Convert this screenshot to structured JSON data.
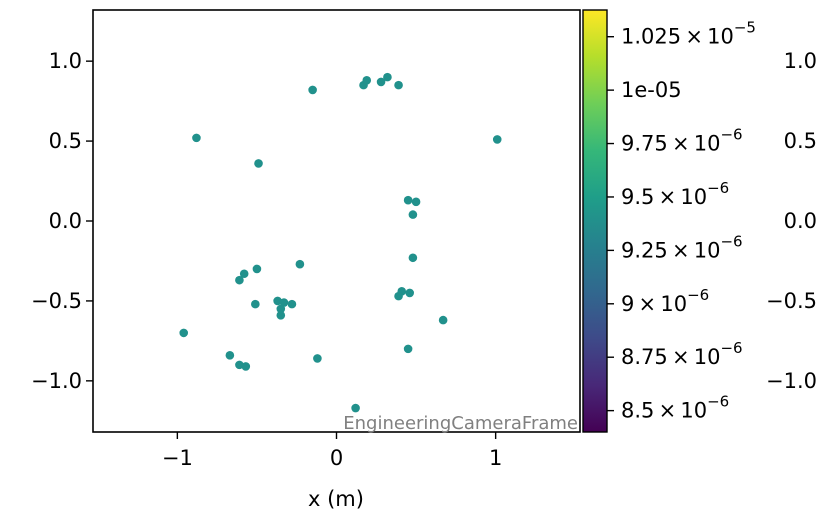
{
  "chart_data": {
    "type": "scatter",
    "xlabel": "x  (m)",
    "watermark": "EngineeringCameraFrame",
    "xlim": [
      -1.53,
      1.53
    ],
    "ylim": [
      -1.32,
      1.32
    ],
    "xticks": [
      {
        "v": -1,
        "label": "−1"
      },
      {
        "v": 0,
        "label": "0"
      },
      {
        "v": 1,
        "label": "1"
      }
    ],
    "yticks": [
      {
        "v": 1.0,
        "label": "1.0"
      },
      {
        "v": 0.5,
        "label": "0.5"
      },
      {
        "v": 0.0,
        "label": "0.0"
      },
      {
        "v": -0.5,
        "label": "−0.5"
      },
      {
        "v": -1.0,
        "label": "−1.0"
      }
    ],
    "right_yticks": [
      {
        "v": 1.0,
        "label": "1.0"
      },
      {
        "v": 0.5,
        "label": "0.5"
      },
      {
        "v": 0.0,
        "label": "0.0"
      },
      {
        "v": -0.5,
        "label": "−0.5"
      },
      {
        "v": -1.0,
        "label": "−1.0"
      }
    ],
    "point_color": "#21918c",
    "points": [
      {
        "x": -0.88,
        "y": 0.52
      },
      {
        "x": -0.49,
        "y": 0.36
      },
      {
        "x": -0.15,
        "y": 0.82
      },
      {
        "x": 0.17,
        "y": 0.85
      },
      {
        "x": 0.19,
        "y": 0.88
      },
      {
        "x": 0.28,
        "y": 0.87
      },
      {
        "x": 0.32,
        "y": 0.9
      },
      {
        "x": 0.39,
        "y": 0.85
      },
      {
        "x": 1.01,
        "y": 0.51
      },
      {
        "x": 0.45,
        "y": 0.13
      },
      {
        "x": 0.5,
        "y": 0.12
      },
      {
        "x": 0.48,
        "y": 0.04
      },
      {
        "x": 0.48,
        "y": -0.23
      },
      {
        "x": -0.23,
        "y": -0.27
      },
      {
        "x": -0.5,
        "y": -0.3
      },
      {
        "x": -0.58,
        "y": -0.33
      },
      {
        "x": -0.61,
        "y": -0.37
      },
      {
        "x": 0.41,
        "y": -0.44
      },
      {
        "x": 0.46,
        "y": -0.45
      },
      {
        "x": 0.39,
        "y": -0.47
      },
      {
        "x": -0.37,
        "y": -0.5
      },
      {
        "x": -0.33,
        "y": -0.51
      },
      {
        "x": -0.28,
        "y": -0.52
      },
      {
        "x": -0.51,
        "y": -0.52
      },
      {
        "x": -0.35,
        "y": -0.55
      },
      {
        "x": -0.35,
        "y": -0.59
      },
      {
        "x": 0.67,
        "y": -0.62
      },
      {
        "x": -0.96,
        "y": -0.7
      },
      {
        "x": 0.45,
        "y": -0.8
      },
      {
        "x": -0.67,
        "y": -0.84
      },
      {
        "x": -0.12,
        "y": -0.86
      },
      {
        "x": -0.61,
        "y": -0.9
      },
      {
        "x": -0.57,
        "y": -0.91
      },
      {
        "x": 0.12,
        "y": -1.17
      }
    ],
    "colorbar": {
      "colormap": "viridis",
      "stops": [
        "#440154",
        "#482878",
        "#3e4a89",
        "#31688e",
        "#26828e",
        "#1f9e89",
        "#35b779",
        "#6ece58",
        "#b5de2b",
        "#fde725"
      ],
      "range": [
        8.4e-06,
        1.0375e-05
      ],
      "ticks": [
        {
          "v": 1.025e-05,
          "mant": "1.025",
          "exp": "−5"
        },
        {
          "v": 1e-05,
          "plain": "1e-05"
        },
        {
          "v": 9.75e-06,
          "mant": "9.75",
          "exp": "−6"
        },
        {
          "v": 9.5e-06,
          "mant": "9.5",
          "exp": "−6"
        },
        {
          "v": 9.25e-06,
          "mant": "9.25",
          "exp": "−6"
        },
        {
          "v": 9e-06,
          "mant": "9",
          "exp": "−6"
        },
        {
          "v": 8.75e-06,
          "mant": "8.75",
          "exp": "−6"
        },
        {
          "v": 8.5e-06,
          "mant": "8.5",
          "exp": "−6"
        }
      ]
    }
  }
}
